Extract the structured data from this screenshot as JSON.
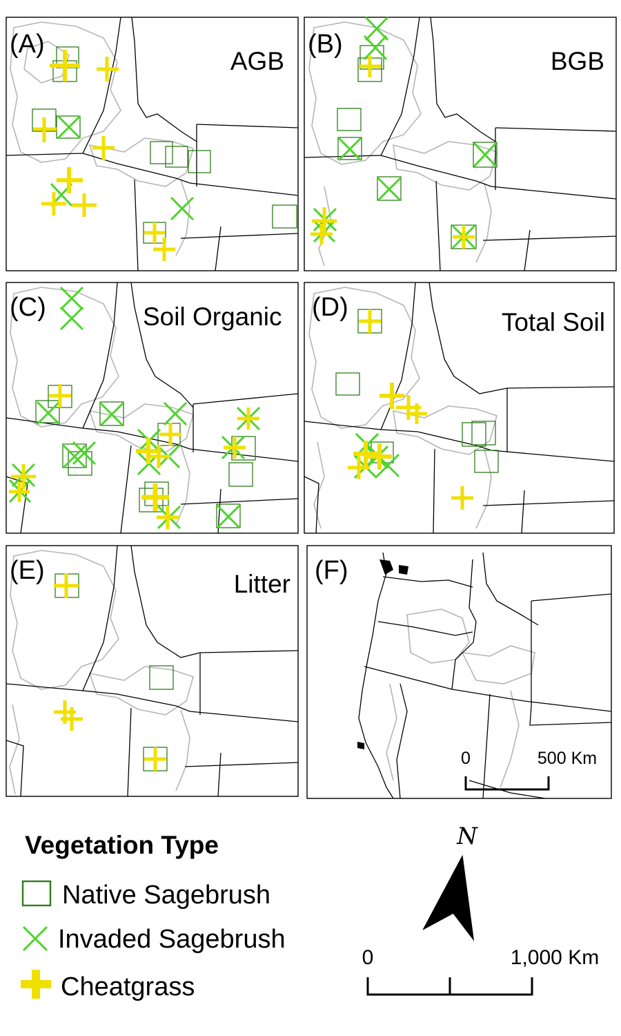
{
  "panels": [
    {
      "id": "A",
      "letter": "(A)",
      "title": "AGB"
    },
    {
      "id": "B",
      "letter": "(B)",
      "title": "BGB"
    },
    {
      "id": "C",
      "letter": "(C)",
      "title": "Soil Organic"
    },
    {
      "id": "D",
      "letter": "(D)",
      "title": "Total Soil"
    },
    {
      "id": "E",
      "letter": "(E)",
      "title": "Litter"
    },
    {
      "id": "F",
      "letter": "(F)",
      "title": ""
    }
  ],
  "inset_scale": {
    "start": "0",
    "end": "500 Km"
  },
  "legend": {
    "title": "Vegetation Type",
    "items": [
      {
        "key": "native",
        "label": "Native Sagebrush",
        "color": "#2e7d1a"
      },
      {
        "key": "invaded",
        "label": "Invaded Sagebrush",
        "color": "#4cd42a"
      },
      {
        "key": "cheat",
        "label": "Cheatgrass",
        "color": "#f0e000"
      }
    ]
  },
  "north_arrow": {
    "label": "N"
  },
  "main_scale": {
    "start": "0",
    "end": "1,000 Km"
  },
  "colors": {
    "native": "#2e7d1a",
    "invaded": "#4cd42a",
    "cheatgrass": "#f0e000",
    "range": "#b5b5b5",
    "border": "#000000"
  }
}
